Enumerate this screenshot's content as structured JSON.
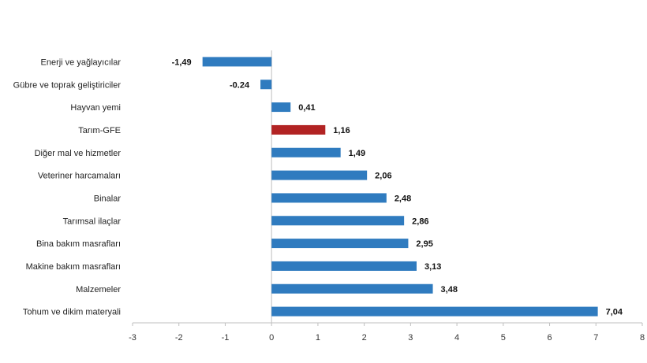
{
  "chart_data": {
    "type": "bar",
    "orientation": "horizontal",
    "categories": [
      "Enerji  ve yağlayıcılar",
      "Gübre ve toprak geliştiriciler",
      "Hayvan yemi",
      "Tarım-GFE",
      "Diğer mal ve hizmetler",
      "Veteriner harcamaları",
      "Binalar",
      "Tarımsal ilaçlar",
      "Bina bakım masrafları",
      "Makine bakım masrafları",
      "Malzemeler",
      "Tohum ve dikim materyali"
    ],
    "values": [
      -1.49,
      -0.24,
      0.41,
      1.16,
      1.49,
      2.06,
      2.48,
      2.86,
      2.95,
      3.13,
      3.48,
      7.04
    ],
    "value_labels": [
      "-1,49",
      "-0.24",
      "0,41",
      "1,16",
      "1,49",
      "2,06",
      "2,48",
      "2,86",
      "2,95",
      "3,13",
      "3,48",
      "7,04"
    ],
    "highlight_index": 3,
    "xlim": [
      -3,
      8
    ],
    "xticks": [
      -3,
      -2,
      -1,
      0,
      1,
      2,
      3,
      4,
      5,
      6,
      7,
      8
    ],
    "xtick_labels": [
      "-3",
      "-2",
      "-1",
      "0",
      "1",
      "2",
      "3",
      "4",
      "5",
      "6",
      "7",
      "8"
    ],
    "grid": false,
    "legend": "none",
    "title": "",
    "xlabel": "",
    "ylabel": "",
    "colors": {
      "bar": "#2f7bbf",
      "highlight": "#b22323",
      "axis": "#bfbfbf"
    }
  }
}
